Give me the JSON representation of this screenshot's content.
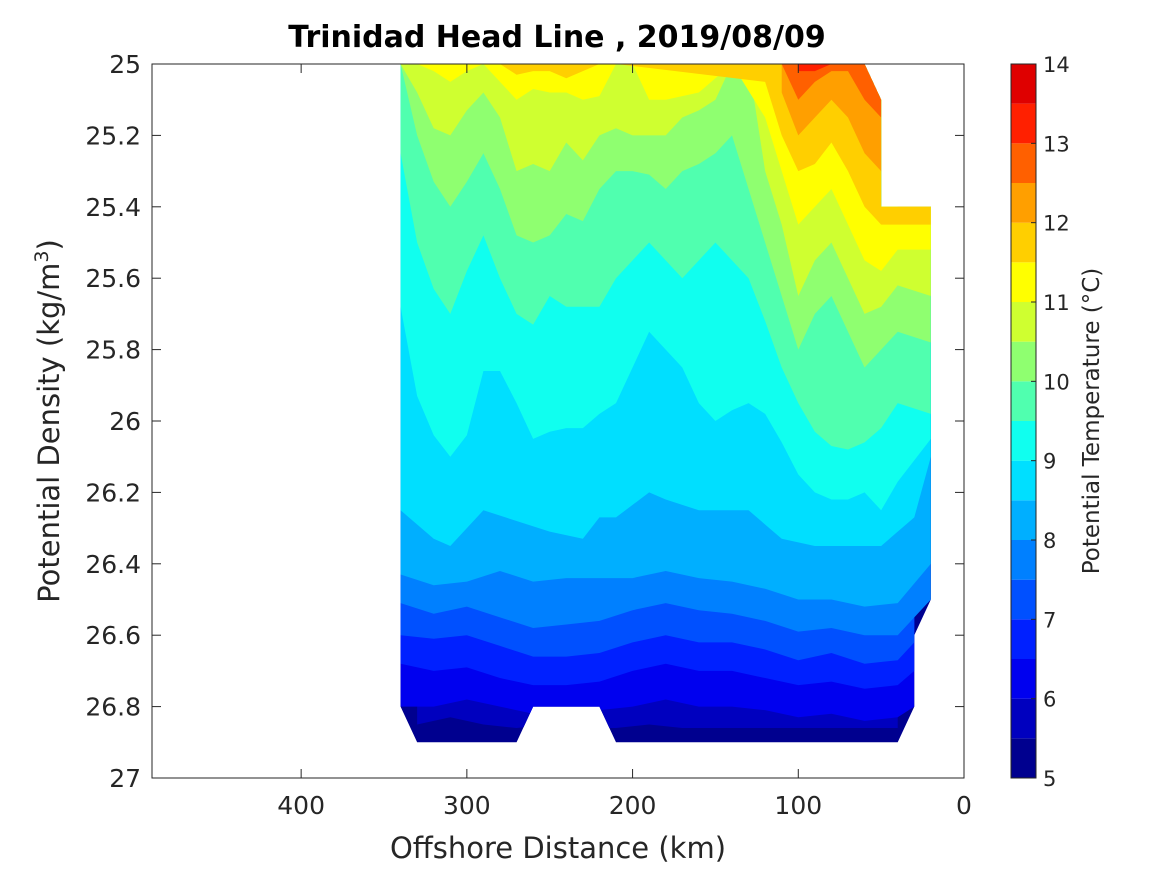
{
  "chart_data": {
    "type": "contour",
    "title": "Trinidad Head Line , 2019/08/09",
    "xlabel": "Offshore Distance (km)",
    "ylabel": "Potential Density (kg/m",
    "ylabel_sup": "3",
    "ylabel_end": ")",
    "xlim": [
      490,
      0
    ],
    "x_reversed": true,
    "ylim": [
      25,
      27
    ],
    "y_reversed": true,
    "x_ticks": [
      400,
      300,
      200,
      100,
      0
    ],
    "x_tick_labels": [
      "400",
      "300",
      "200",
      "100",
      "0"
    ],
    "y_ticks": [
      25,
      25.2,
      25.4,
      25.6,
      25.8,
      26,
      26.2,
      26.4,
      26.6,
      26.8,
      27
    ],
    "y_tick_labels": [
      "25",
      "25.2",
      "25.4",
      "25.6",
      "25.8",
      "26",
      "26.2",
      "26.4",
      "26.6",
      "26.8",
      "27"
    ],
    "colorbar": {
      "label": "Potential Temperature (°C)",
      "range": [
        5,
        14
      ],
      "ticks": [
        5,
        6,
        7,
        8,
        9,
        10,
        11,
        12,
        13,
        14
      ],
      "tick_labels": [
        "5",
        "6",
        "7",
        "8",
        "9",
        "10",
        "11",
        "12",
        "13",
        "14"
      ],
      "levels": [
        5,
        5.5,
        6,
        6.5,
        7,
        7.5,
        8,
        8.5,
        9,
        9.5,
        10,
        10.5,
        11,
        11.5,
        12,
        12.5,
        13,
        13.5,
        14
      ],
      "colors": [
        "#00008F",
        "#0000BF",
        "#0000EF",
        "#0020FF",
        "#0050FF",
        "#0080FF",
        "#00AFFF",
        "#00DFFF",
        "#10FFEF",
        "#50FFAF",
        "#8FFF70",
        "#CFFF30",
        "#FFFF00",
        "#FFCF00",
        "#FF9F00",
        "#FF6000",
        "#FF2000",
        "#DF0000",
        "#AF0000"
      ]
    },
    "isotherms": [
      {
        "level": 5.5,
        "x": [
          330,
          310,
          290,
          270,
          250,
          220,
          210,
          190,
          170,
          150,
          130,
          110,
          90,
          70,
          55,
          40
        ],
        "y": [
          26.85,
          26.83,
          26.85,
          26.86,
          26.85,
          26.86,
          26.86,
          26.85,
          26.86,
          26.86,
          26.86,
          26.86,
          26.86,
          26.86,
          26.86,
          26.86
        ]
      },
      {
        "level": 6.0,
        "x": [
          340,
          320,
          300,
          280,
          260,
          240,
          220,
          200,
          180,
          160,
          140,
          120,
          100,
          80,
          60,
          40,
          30
        ],
        "y": [
          26.8,
          26.8,
          26.78,
          26.8,
          26.82,
          26.81,
          26.81,
          26.8,
          26.78,
          26.8,
          26.8,
          26.81,
          26.83,
          26.82,
          26.84,
          26.83,
          26.8
        ]
      },
      {
        "level": 6.5,
        "x": [
          340,
          320,
          300,
          280,
          260,
          240,
          220,
          200,
          180,
          160,
          140,
          120,
          100,
          80,
          60,
          40,
          30
        ],
        "y": [
          26.68,
          26.7,
          26.69,
          26.72,
          26.74,
          26.74,
          26.73,
          26.7,
          26.68,
          26.7,
          26.7,
          26.72,
          26.74,
          26.73,
          26.75,
          26.74,
          26.7
        ]
      },
      {
        "level": 7.0,
        "x": [
          340,
          320,
          300,
          280,
          260,
          240,
          220,
          200,
          180,
          160,
          140,
          120,
          100,
          80,
          60,
          40,
          30
        ],
        "y": [
          26.6,
          26.61,
          26.6,
          26.63,
          26.66,
          26.66,
          26.65,
          26.62,
          26.6,
          26.62,
          26.62,
          26.64,
          26.67,
          26.65,
          26.68,
          26.67,
          26.62
        ]
      },
      {
        "level": 7.5,
        "x": [
          340,
          320,
          300,
          280,
          260,
          240,
          220,
          200,
          180,
          160,
          140,
          120,
          100,
          80,
          60,
          40,
          20
        ],
        "y": [
          26.51,
          26.54,
          26.52,
          26.55,
          26.58,
          26.57,
          26.56,
          26.53,
          26.51,
          26.53,
          26.54,
          26.56,
          26.59,
          26.58,
          26.6,
          26.6,
          26.5
        ]
      },
      {
        "level": 8.0,
        "x": [
          340,
          320,
          300,
          280,
          260,
          240,
          220,
          200,
          180,
          160,
          140,
          120,
          100,
          80,
          60,
          40,
          20
        ],
        "y": [
          26.43,
          26.46,
          26.45,
          26.42,
          26.45,
          26.44,
          26.44,
          26.44,
          26.42,
          26.44,
          26.45,
          26.47,
          26.5,
          26.5,
          26.52,
          26.51,
          26.4
        ]
      },
      {
        "level": 8.5,
        "x": [
          340,
          320,
          310,
          290,
          270,
          250,
          230,
          220,
          210,
          190,
          180,
          160,
          150,
          130,
          110,
          90,
          70,
          50,
          30,
          20
        ],
        "y": [
          26.25,
          26.33,
          26.35,
          26.25,
          26.28,
          26.31,
          26.33,
          26.27,
          26.27,
          26.2,
          26.22,
          26.25,
          26.25,
          26.25,
          26.33,
          26.35,
          26.35,
          26.35,
          26.27,
          26.1
        ]
      },
      {
        "level": 9.0,
        "x": [
          340,
          330,
          320,
          310,
          300,
          290,
          280,
          270,
          260,
          250,
          240,
          230,
          220,
          210,
          200,
          190,
          180,
          170,
          160,
          150,
          140,
          130,
          120,
          110,
          100,
          90,
          80,
          70,
          60,
          50,
          40,
          20
        ],
        "y": [
          25.68,
          25.93,
          26.04,
          26.1,
          26.04,
          25.86,
          25.86,
          25.95,
          26.05,
          26.03,
          26.02,
          26.02,
          25.98,
          25.95,
          25.85,
          25.75,
          25.8,
          25.85,
          25.95,
          26.0,
          25.97,
          25.95,
          25.98,
          26.06,
          26.15,
          26.2,
          26.22,
          26.22,
          26.2,
          26.25,
          26.17,
          26.05
        ]
      },
      {
        "level": 9.5,
        "x": [
          340,
          330,
          320,
          310,
          300,
          290,
          280,
          270,
          260,
          250,
          240,
          230,
          220,
          210,
          200,
          190,
          180,
          170,
          160,
          150,
          140,
          130,
          120,
          110,
          100,
          90,
          80,
          70,
          60,
          50,
          40,
          20
        ],
        "y": [
          25.25,
          25.5,
          25.63,
          25.7,
          25.58,
          25.48,
          25.6,
          25.7,
          25.73,
          25.65,
          25.68,
          25.68,
          25.68,
          25.6,
          25.55,
          25.5,
          25.55,
          25.6,
          25.55,
          25.5,
          25.55,
          25.6,
          25.72,
          25.85,
          25.95,
          26.03,
          26.07,
          26.08,
          26.06,
          26.02,
          25.95,
          25.98
        ]
      },
      {
        "level": 10.0,
        "x": [
          340,
          330,
          320,
          310,
          300,
          290,
          280,
          270,
          260,
          250,
          240,
          230,
          220,
          210,
          200,
          190,
          180,
          170,
          160,
          150,
          140,
          130,
          120,
          110,
          100,
          90,
          80,
          70,
          60,
          50,
          40,
          20
        ],
        "y": [
          25.0,
          25.2,
          25.33,
          25.4,
          25.33,
          25.25,
          25.35,
          25.48,
          25.5,
          25.48,
          25.42,
          25.44,
          25.35,
          25.3,
          25.3,
          25.31,
          25.35,
          25.3,
          25.28,
          25.25,
          25.2,
          25.35,
          25.5,
          25.65,
          25.8,
          25.7,
          25.65,
          25.75,
          25.85,
          25.8,
          25.75,
          25.78
        ]
      },
      {
        "level": 10.5,
        "x": [
          340,
          330,
          320,
          310,
          300,
          290,
          280,
          270,
          260,
          250,
          240,
          230,
          220,
          210,
          200,
          190,
          180,
          170,
          160,
          150,
          140,
          130,
          120,
          110,
          100,
          90,
          80,
          70,
          60,
          50,
          40,
          20
        ],
        "y": [
          25.0,
          25.08,
          25.18,
          25.2,
          25.13,
          25.08,
          25.15,
          25.3,
          25.28,
          25.3,
          25.22,
          25.27,
          25.2,
          25.18,
          25.2,
          25.2,
          25.2,
          25.15,
          25.13,
          25.1,
          25.0,
          25.0,
          25.3,
          25.45,
          25.65,
          25.55,
          25.5,
          25.6,
          25.7,
          25.68,
          25.62,
          25.65
        ]
      },
      {
        "level": 11.0,
        "x": [
          330,
          320,
          310,
          300,
          290,
          280,
          270,
          260,
          250,
          240,
          230,
          220,
          210,
          200,
          190,
          180,
          160,
          140,
          120,
          110,
          100,
          90,
          80,
          70,
          60,
          50,
          40,
          20
        ],
        "y": [
          25.0,
          25.02,
          25.05,
          25.02,
          25.0,
          25.05,
          25.1,
          25.07,
          25.08,
          25.08,
          25.1,
          25.09,
          25.0,
          25.0,
          25.1,
          25.1,
          25.08,
          25.0,
          25.15,
          25.3,
          25.45,
          25.4,
          25.35,
          25.45,
          25.55,
          25.58,
          25.52,
          25.52
        ]
      },
      {
        "level": 11.5,
        "x": [
          300,
          290,
          280,
          270,
          260,
          250,
          240,
          230,
          220,
          210,
          120,
          110,
          100,
          90,
          80,
          70,
          60,
          50,
          40,
          20
        ],
        "y": [
          25.0,
          25.0,
          25.0,
          25.03,
          25.02,
          25.02,
          25.04,
          25.02,
          25.0,
          25.0,
          25.05,
          25.2,
          25.3,
          25.28,
          25.22,
          25.3,
          25.4,
          25.45,
          25.45,
          25.45
        ]
      },
      {
        "level": 12.0,
        "x": [
          110,
          100,
          90,
          80,
          70,
          60,
          50,
          40,
          20
        ],
        "y": [
          25.08,
          25.2,
          25.15,
          25.1,
          25.15,
          25.25,
          25.3,
          25.4,
          25.4
        ]
      },
      {
        "level": 12.5,
        "x": [
          110,
          100,
          90,
          80,
          70,
          60,
          50
        ],
        "y": [
          25.0,
          25.1,
          25.05,
          25.02,
          25.02,
          25.1,
          25.15
        ]
      },
      {
        "level": 13.0,
        "x": [
          100,
          90,
          80,
          70
        ],
        "y": [
          25.02,
          25.02,
          25.0,
          25.0
        ]
      }
    ]
  }
}
